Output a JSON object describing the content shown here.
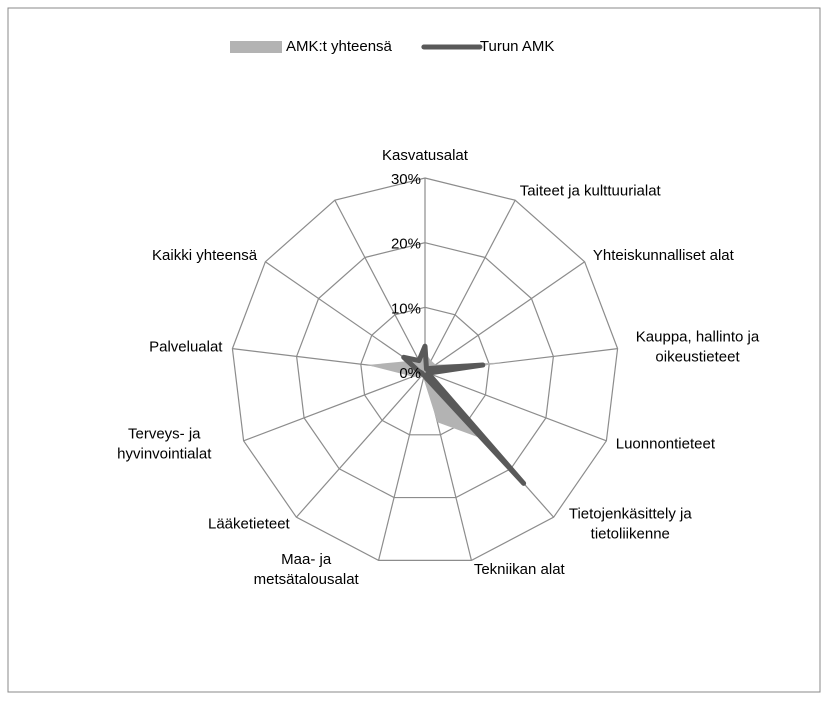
{
  "chart_data": {
    "type": "radar",
    "categories": [
      "Kasvatusalat",
      "Taiteet ja kulttuurialat",
      "Yhteiskunnalliset alat",
      "Kauppa, hallinto ja\noikeustieteet",
      "Luonnontieteet",
      "Tietojenkäsittely ja\ntietoliikenne",
      "Tekniikan alat",
      "Maa- ja\nmetsätalousalat",
      "Lääketieteet",
      "Terveys- ja\nhyvinvointialat",
      "Palvelualat",
      "Kaikki yhteensä",
      null
    ],
    "series": [
      {
        "name": "AMK:t yhteensä",
        "color": "#b3b3b3",
        "values": [
          3,
          2,
          2,
          12,
          1,
          14,
          8,
          1,
          1,
          2,
          9,
          3,
          2
        ]
      },
      {
        "name": "Turun AMK",
        "color": "#595959",
        "values": [
          4,
          0.5,
          1,
          9,
          0.5,
          23,
          1,
          0.5,
          0.5,
          0.5,
          1,
          4,
          2
        ]
      }
    ],
    "rlim": [
      0,
      30
    ],
    "rticks": [
      {
        "value": 0,
        "label": "0%"
      },
      {
        "value": 10,
        "label": "10%"
      },
      {
        "value": 20,
        "label": "20%"
      },
      {
        "value": 30,
        "label": "30%"
      }
    ],
    "legend": "top"
  }
}
